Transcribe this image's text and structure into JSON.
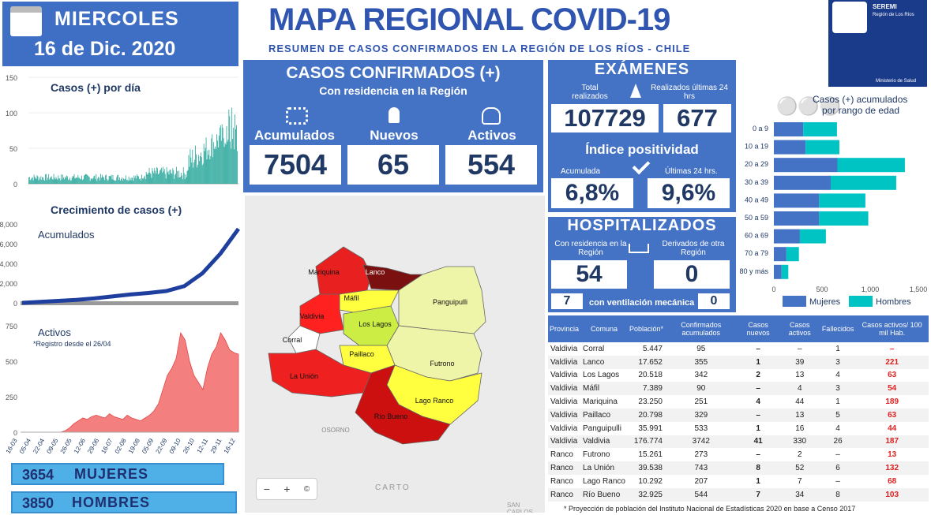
{
  "date": {
    "weekday": "MIERCOLES",
    "date": "16 de Dic. 2020"
  },
  "title": "MAPA REGIONAL COVID-19",
  "subtitle": "RESUMEN DE CASOS CONFIRMADOS EN LA REGIÓN DE LOS RÍOS - CHILE",
  "seremi": {
    "name": "SEREMI",
    "region": "Región de Los Ríos",
    "ministry": "Ministerio de Salud"
  },
  "confirmed": {
    "title": "CASOS CONFIRMADOS (+)",
    "subtitle": "Con residencia en la Región",
    "labels": [
      "Acumulados",
      "Nuevos",
      "Activos"
    ],
    "values": [
      "7504",
      "65",
      "554"
    ]
  },
  "exams": {
    "title": "EXÁMENES",
    "total_label": "Total realizados",
    "last_label": "Realizados últimas 24 hrs",
    "total": "107729",
    "last": "677",
    "positivity_title": "Índice positividad",
    "acc_label": "Acumulada",
    "last24_label": "Últimas 24 hrs.",
    "acc": "6,8%",
    "last24": "9,6%"
  },
  "hosp": {
    "title": "HOSPITALIZADOS",
    "res_label": "Con residencia en la Región",
    "der_label": "Derivados de otra Región",
    "res": "54",
    "der": "0",
    "vent_left": "7",
    "vent_label": "con ventilación mecánica",
    "vent_right": "0"
  },
  "gender": {
    "women": "3654",
    "women_label": "MUJERES",
    "men": "3850",
    "men_label": "HOMBRES"
  },
  "map": {
    "labels": [
      "Mariquina",
      "Lanco",
      "Máfil",
      "Panguipulli",
      "Valdivia",
      "Los Lagos",
      "Corral",
      "Paillaco",
      "Futrono",
      "La Unión",
      "Lago Ranco",
      "Río Bueno",
      "OSORNO"
    ],
    "attribution": "CARTO",
    "attribution2": "SAN CARLOS",
    "zoom_out": "−",
    "zoom_in": "+",
    "info": "©"
  },
  "table": {
    "headers": [
      "Provincia",
      "Comuna",
      "Población*",
      "Confirmados acumulados",
      "Casos nuevos",
      "Casos activos",
      "Fallecidos",
      "Casos activos/ 100 mil Hab."
    ],
    "rows": [
      [
        "Valdivia",
        "Corral",
        "5.447",
        "95",
        "–",
        "–",
        "1",
        "–"
      ],
      [
        "Valdivia",
        "Lanco",
        "17.652",
        "355",
        "1",
        "39",
        "3",
        "221"
      ],
      [
        "Valdivia",
        "Los Lagos",
        "20.518",
        "342",
        "2",
        "13",
        "4",
        "63"
      ],
      [
        "Valdivia",
        "Máfil",
        "7.389",
        "90",
        "–",
        "4",
        "3",
        "54"
      ],
      [
        "Valdivia",
        "Mariquina",
        "23.250",
        "251",
        "4",
        "44",
        "1",
        "189"
      ],
      [
        "Valdivia",
        "Paillaco",
        "20.798",
        "329",
        "–",
        "13",
        "5",
        "63"
      ],
      [
        "Valdivia",
        "Panguipulli",
        "35.991",
        "533",
        "1",
        "16",
        "4",
        "44"
      ],
      [
        "Valdivia",
        "Valdivia",
        "176.774",
        "3742",
        "41",
        "330",
        "26",
        "187"
      ],
      [
        "Ranco",
        "Futrono",
        "15.261",
        "273",
        "–",
        "2",
        "–",
        "13"
      ],
      [
        "Ranco",
        "La Unión",
        "39.538",
        "743",
        "8",
        "52",
        "6",
        "132"
      ],
      [
        "Ranco",
        "Lago Ranco",
        "10.292",
        "207",
        "1",
        "7",
        "–",
        "68"
      ],
      [
        "Ranco",
        "Río Bueno",
        "32.925",
        "544",
        "7",
        "34",
        "8",
        "103"
      ]
    ],
    "footnote": "* Proyección de población del Instituto Nacional de Estadísticas 2020 en base a Censo 2017"
  },
  "chart_data": [
    {
      "type": "bar",
      "title": "Casos (+) por día",
      "yticks": [
        "0",
        "50",
        "100",
        "150"
      ],
      "ylim": [
        0,
        150
      ],
      "color": "#26a69a"
    },
    {
      "type": "area",
      "title": "Crecimiento de casos (+)",
      "series": [
        {
          "name": "Acumulados",
          "values": [
            0,
            100,
            200,
            300,
            450,
            650,
            850,
            1000,
            1200,
            1700,
            3000,
            5000,
            7504
          ]
        }
      ],
      "yticks": [
        "0",
        "2,000",
        "4,000",
        "6,000",
        "8,000"
      ],
      "ylim": [
        0,
        8000
      ]
    },
    {
      "type": "area",
      "title": "Activos",
      "note": "*Registro desde el 26/04",
      "yticks": [
        "0",
        "250",
        "500",
        "750"
      ],
      "ylim": [
        0,
        750
      ],
      "xticks": [
        "16-03",
        "05-04",
        "22-04",
        "09-05",
        "26-05",
        "12-06",
        "29-06",
        "16-07",
        "02-08",
        "19-08",
        "05-09",
        "22-09",
        "09-10",
        "26-10",
        "12-11",
        "29-11",
        "16-12"
      ],
      "color": "#f07070"
    },
    {
      "type": "bar",
      "title": "Casos (+) acumulados por rango de edad",
      "categories": [
        "0 a 9",
        "10 a 19",
        "20 a 29",
        "30 a 39",
        "40 a 49",
        "50 a 59",
        "60 a 69",
        "70 a 79",
        "80 y más"
      ],
      "series": [
        {
          "name": "Mujeres",
          "values": [
            305,
            330,
            660,
            590,
            470,
            470,
            270,
            130,
            80
          ]
        },
        {
          "name": "Hombres",
          "values": [
            350,
            350,
            700,
            680,
            480,
            510,
            270,
            130,
            70
          ]
        }
      ],
      "xticks": [
        "0",
        "500",
        "1,000",
        "1,500"
      ],
      "xlim": [
        0,
        1500
      ],
      "colors": [
        "#4472c4",
        "#00c4c4"
      ]
    }
  ]
}
